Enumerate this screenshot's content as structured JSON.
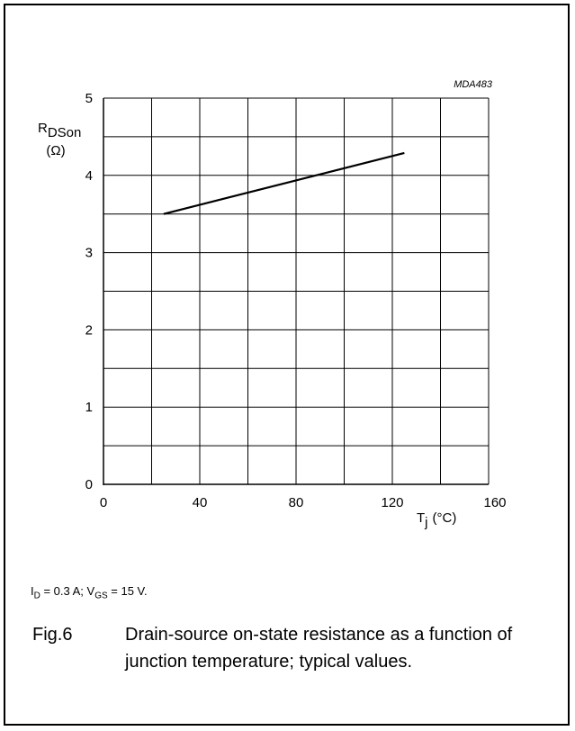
{
  "chart_data": {
    "type": "line",
    "code_label": "MDA483",
    "ylabel": {
      "main": "R",
      "sub": "DSon",
      "unit": "(Ω)"
    },
    "xlabel": {
      "main": "T",
      "sub": "j",
      "unit": "(°C)"
    },
    "xlim": [
      0,
      160
    ],
    "ylim": [
      0,
      5
    ],
    "x_ticks": [
      "0",
      "40",
      "80",
      "120",
      "160"
    ],
    "y_ticks": [
      "0",
      "1",
      "2",
      "3",
      "4",
      "5"
    ],
    "grid": true,
    "series": [
      {
        "x": [
          25,
          125
        ],
        "y": [
          3.5,
          4.29
        ]
      }
    ]
  },
  "conditions": {
    "id_label": "I",
    "id_sub": "D",
    "id_value": " = 0.3 A; ",
    "vgs_label": "V",
    "vgs_sub": "GS",
    "vgs_value": " = 15 V."
  },
  "caption": {
    "fig_number": "Fig.6",
    "text": "Drain-source on-state resistance as a function of junction temperature; typical values."
  }
}
